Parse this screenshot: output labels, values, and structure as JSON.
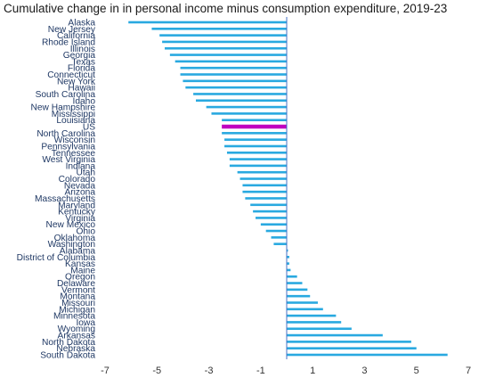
{
  "chart_data": {
    "type": "bar",
    "orientation": "horizontal",
    "title": "Cumulative change in in personal income minus  consumption expenditure, 2019-23",
    "xlabel": "",
    "ylabel": "",
    "xlim": [
      -7,
      7
    ],
    "xticks": [
      "-7",
      "-5",
      "-3",
      "-1",
      "1",
      "3",
      "5",
      "7"
    ],
    "grid": false,
    "legend": "none",
    "colors": {
      "bar": "#29A9E0",
      "highlight": "#C000C0",
      "axis": "#4472C4"
    },
    "highlight_category": "US",
    "categories": [
      "Alaska",
      "New Jersey",
      "California",
      "Rhode Island",
      "Illinois",
      "Georgia",
      "Texas",
      "Florida",
      "Connecticut",
      "New York",
      "Hawaii",
      "South Carolina",
      "Idaho",
      "New Hampshire",
      "Mississippi",
      "Louisiana",
      "US",
      "North Carolina",
      "Wisconsin",
      "Pennsylvania",
      "Tennessee",
      "West Virginia",
      "Indiana",
      "Utah",
      "Colorado",
      "Nevada",
      "Arizona",
      "Massachusetts",
      "Maryland",
      "Kentucky",
      "Virginia",
      "New Mexico",
      "Ohio",
      "Oklahoma",
      "Washington",
      "Alabama",
      "District of Columbia",
      "Kansas",
      "Maine",
      "Oregon",
      "Delaware",
      "Vermont",
      "Montana",
      "Missouri",
      "Michigan",
      "Minnesota",
      "Iowa",
      "Wyoming",
      "Arkansas",
      "North Dakota",
      "Nebraska",
      "South Dakota"
    ],
    "values": [
      -6.1,
      -5.2,
      -4.9,
      -4.8,
      -4.7,
      -4.5,
      -4.3,
      -4.1,
      -4.1,
      -4.0,
      -3.9,
      -3.6,
      -3.5,
      -3.1,
      -2.9,
      -2.5,
      -2.5,
      -2.5,
      -2.4,
      -2.4,
      -2.3,
      -2.2,
      -2.2,
      -1.9,
      -1.8,
      -1.7,
      -1.7,
      -1.6,
      -1.4,
      -1.3,
      -1.2,
      -1.0,
      -0.8,
      -0.6,
      -0.5,
      0.05,
      0.1,
      0.1,
      0.15,
      0.4,
      0.6,
      0.8,
      0.9,
      1.2,
      1.4,
      1.9,
      2.1,
      2.5,
      3.7,
      4.8,
      5.0,
      6.2
    ]
  }
}
